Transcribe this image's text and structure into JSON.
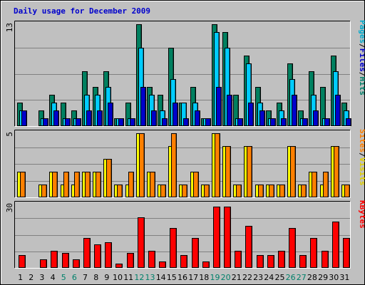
{
  "chart_data": {
    "type": "bar",
    "title": "Daily usage for December 2009",
    "categories": [
      "1",
      "2",
      "3",
      "4",
      "5",
      "6",
      "7",
      "8",
      "9",
      "10",
      "11",
      "12",
      "13",
      "14",
      "15",
      "16",
      "17",
      "18",
      "19",
      "20",
      "21",
      "22",
      "23",
      "24",
      "25",
      "26",
      "27",
      "28",
      "29",
      "30",
      "31"
    ],
    "weekend_days": [
      "5",
      "6",
      "12",
      "13",
      "19",
      "20",
      "26",
      "27"
    ],
    "panels": [
      {
        "id": "hits",
        "ymax_label": "13",
        "ylim": [
          0,
          13
        ],
        "legend": [
          {
            "label": "Pages",
            "color": "#00aacc"
          },
          {
            "label": "/",
            "color": "#000000"
          },
          {
            "label": "Files",
            "color": "#0000cc"
          },
          {
            "label": "/",
            "color": "#000000"
          },
          {
            "label": "Hits",
            "color": "#00806a"
          }
        ],
        "series": [
          {
            "name": "Hits",
            "color": "#008060",
            "values": [
              3,
              0,
              2,
              4,
              3,
              2,
              7,
              5,
              7,
              1,
              3,
              13,
              5,
              4,
              10,
              3,
              5,
              1,
              13,
              12,
              4,
              9,
              5,
              2,
              3,
              8,
              2,
              7,
              5,
              9,
              3
            ]
          },
          {
            "name": "Files",
            "color": "#00ccff",
            "values": [
              2,
              0,
              1,
              3,
              1,
              1,
              4,
              4,
              5,
              1,
              1,
              10,
              4,
              2,
              6,
              3,
              3,
              1,
              12,
              10,
              1,
              8,
              3,
              1,
              2,
              6,
              1,
              4,
              1,
              7,
              2
            ]
          },
          {
            "name": "Pages",
            "color": "#0000cc",
            "values": [
              2,
              0,
              1,
              2,
              1,
              1,
              2,
              2,
              3,
              1,
              1,
              5,
              2,
              1,
              3,
              1,
              2,
              1,
              5,
              4,
              1,
              3,
              2,
              1,
              1,
              4,
              1,
              2,
              1,
              4,
              1
            ]
          }
        ]
      },
      {
        "id": "visits",
        "ymax_label": "5",
        "ylim": [
          0,
          5
        ],
        "legend": [
          {
            "label": "Sites",
            "color": "#ff8000"
          },
          {
            "label": "/",
            "color": "#000000"
          },
          {
            "label": "Visits",
            "color": "#e0d000"
          }
        ],
        "series": [
          {
            "name": "Visits",
            "color": "#ffff00",
            "values": [
              2,
              0,
              1,
              2,
              1,
              1,
              2,
              2,
              3,
              1,
              1,
              5,
              2,
              1,
              4,
              1,
              2,
              1,
              5,
              4,
              1,
              4,
              1,
              1,
              1,
              4,
              1,
              2,
              1,
              4,
              1
            ]
          },
          {
            "name": "Sites",
            "color": "#ff8000",
            "values": [
              2,
              0,
              1,
              2,
              2,
              2,
              2,
              2,
              3,
              1,
              2,
              5,
              2,
              1,
              5,
              1,
              2,
              1,
              5,
              4,
              1,
              4,
              1,
              1,
              1,
              4,
              1,
              2,
              2,
              4,
              1
            ]
          }
        ]
      },
      {
        "id": "kbytes",
        "ymax_label": "30",
        "ylim": [
          0,
          30
        ],
        "legend": [
          {
            "label": "KBytes",
            "color": "#ff0000"
          }
        ],
        "series": [
          {
            "name": "KBytes",
            "color": "#ff0000",
            "values": [
              6,
              0,
              4,
              8,
              7,
              4,
              14,
              11,
              12,
              2,
              7,
              24,
              8,
              3,
              19,
              6,
              14,
              3,
              29,
              29,
              8,
              20,
              6,
              6,
              8,
              19,
              6,
              14,
              8,
              22,
              14
            ]
          }
        ]
      }
    ]
  }
}
